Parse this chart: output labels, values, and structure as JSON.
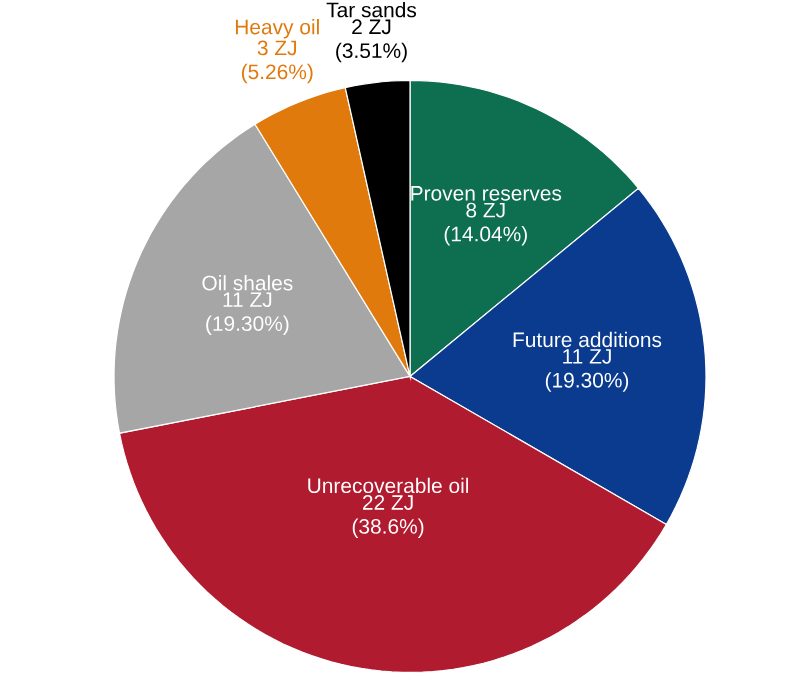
{
  "chart_data": {
    "type": "pie",
    "categories": [
      "Proven reserves",
      "Future additions",
      "Unrecoverable oil",
      "Oil shales",
      "Heavy oil",
      "Tar sands"
    ],
    "values": [
      8,
      11,
      22,
      11,
      3,
      2
    ],
    "value_labels": [
      "8 ZJ (14.04%)",
      "11 ZJ (19.30%)",
      "22 ZJ (38.6%)",
      "11 ZJ (19.30%)",
      "3 ZJ (5.26%)",
      "2 ZJ (3.51%)"
    ],
    "colors": [
      "#0e6e50",
      "#0b3b8e",
      "#b01b2f",
      "#a6a6a6",
      "#e07a0c",
      "#000000"
    ]
  }
}
